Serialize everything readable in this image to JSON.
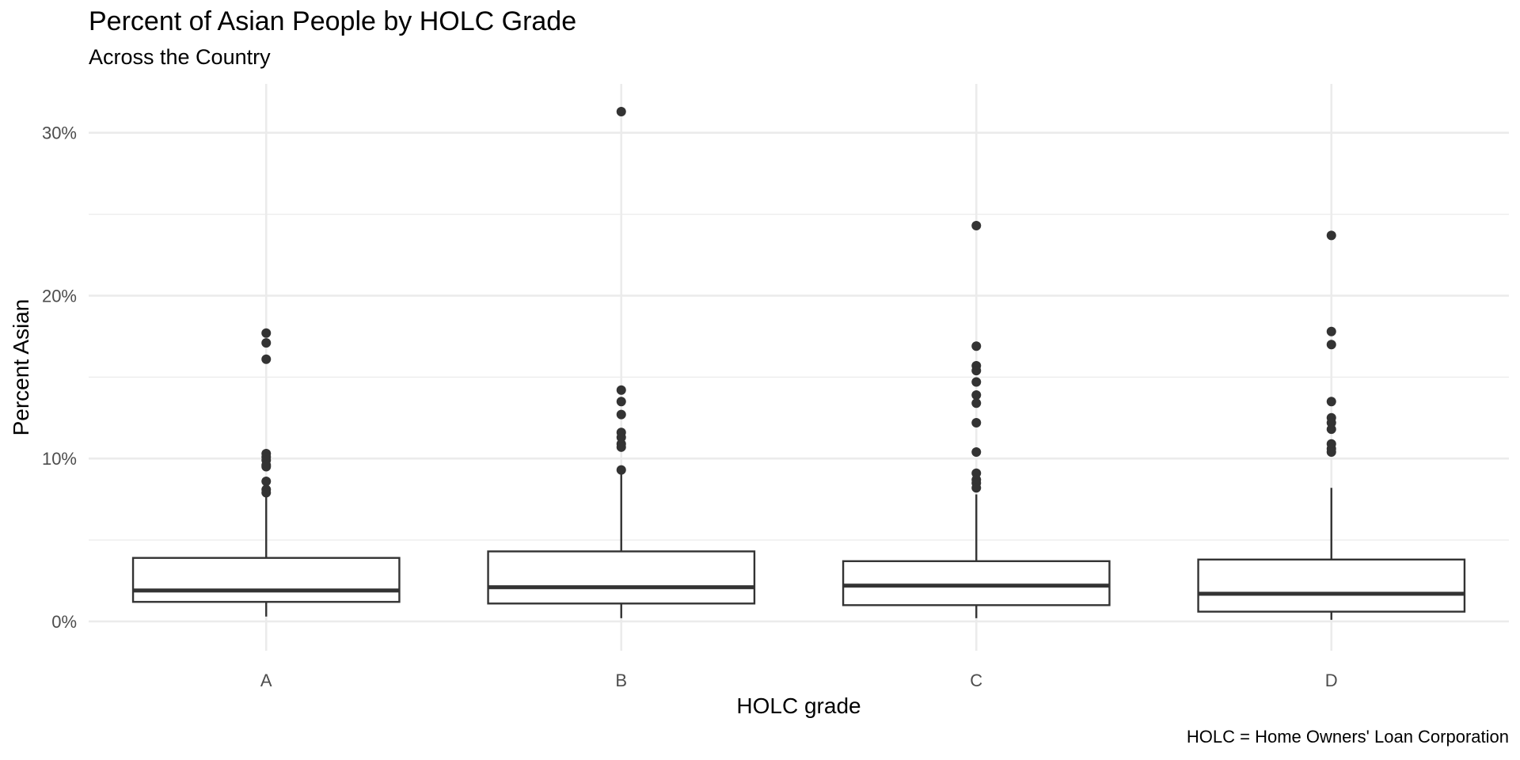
{
  "chart_data": {
    "type": "boxplot",
    "title": "Percent of Asian People by HOLC Grade",
    "subtitle": "Across the Country",
    "xlabel": "HOLC grade",
    "ylabel": "Percent Asian",
    "caption": "HOLC = Home Owners' Loan Corporation",
    "ylim": [
      -1.8,
      33
    ],
    "y_ticks": [
      0,
      10,
      20,
      30
    ],
    "y_tick_labels": [
      "0%",
      "10%",
      "20%",
      "30%"
    ],
    "y_minor_ticks": [
      5,
      15,
      25
    ],
    "grid": true,
    "box_color": "#333333",
    "categories": [
      "A",
      "B",
      "C",
      "D"
    ],
    "boxes": [
      {
        "category": "A",
        "whisker_low": 0.3,
        "q1": 1.2,
        "median": 1.9,
        "q3": 3.9,
        "whisker_high": 7.8,
        "outliers": [
          17.7,
          17.1,
          16.1,
          10.3,
          10.1,
          9.9,
          9.6,
          9.5,
          8.6,
          8.1,
          7.9
        ]
      },
      {
        "category": "B",
        "whisker_low": 0.2,
        "q1": 1.1,
        "median": 2.1,
        "q3": 4.3,
        "whisker_high": 9.2,
        "outliers": [
          31.3,
          14.2,
          13.5,
          12.7,
          11.6,
          11.3,
          10.9,
          10.7,
          9.3
        ]
      },
      {
        "category": "C",
        "whisker_low": 0.2,
        "q1": 1.0,
        "median": 2.2,
        "q3": 3.7,
        "whisker_high": 7.8,
        "outliers": [
          24.3,
          16.9,
          15.7,
          15.4,
          14.7,
          13.9,
          13.4,
          12.2,
          10.4,
          9.1,
          8.7,
          8.5,
          8.2
        ]
      },
      {
        "category": "D",
        "whisker_low": 0.1,
        "q1": 0.6,
        "median": 1.7,
        "q3": 3.8,
        "whisker_high": 8.2,
        "outliers": [
          23.7,
          17.8,
          17.0,
          13.5,
          12.5,
          12.2,
          11.8,
          10.9,
          10.6,
          10.4
        ]
      }
    ]
  }
}
